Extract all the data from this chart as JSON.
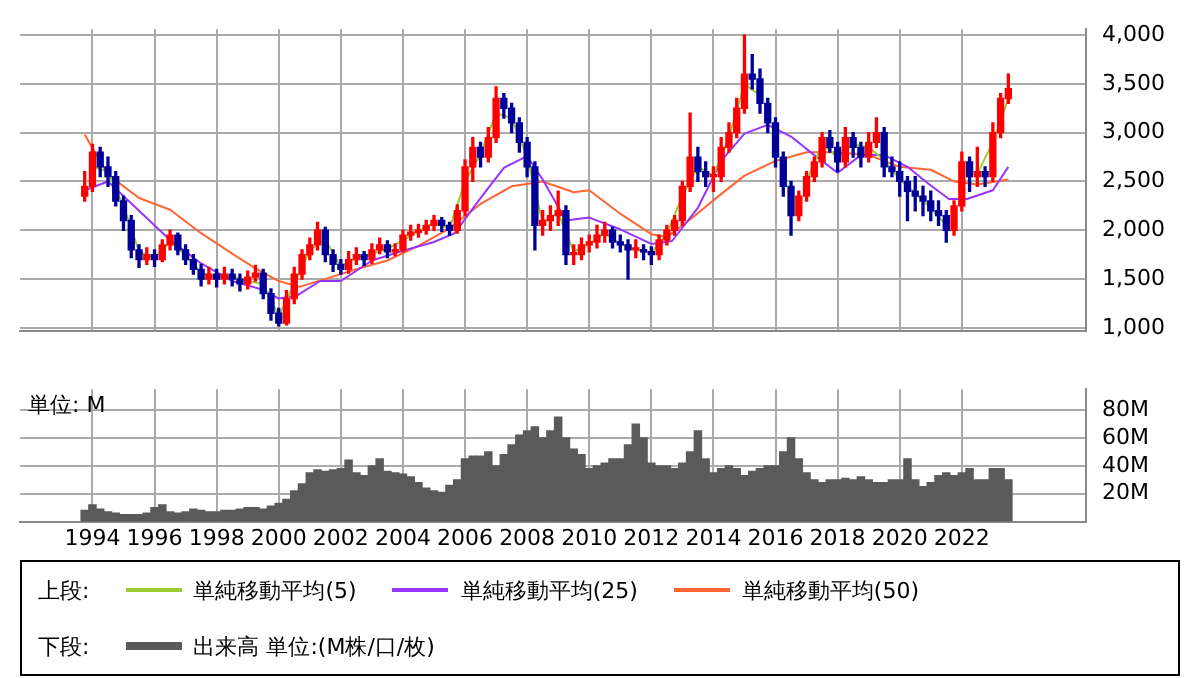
{
  "chart_data": [
    {
      "type": "candlestick",
      "tick_labels": "y",
      "grid": true,
      "legend": "bottom",
      "legend_title": "上段:",
      "xlim": [
        "1991-09",
        "2026-01"
      ],
      "xticks": [
        "1994",
        "1996",
        "1998",
        "2000",
        "2002",
        "2004",
        "2006",
        "2008",
        "2010",
        "2012",
        "2014",
        "2016",
        "2018",
        "2020",
        "2022"
      ],
      "ylim": [
        970,
        4060
      ],
      "yticks": [
        {
          "value": 1000,
          "label": "1,000"
        },
        {
          "value": 1500,
          "label": "1,500"
        },
        {
          "value": 2000,
          "label": "2,000"
        },
        {
          "value": 2500,
          "label": "2,500"
        },
        {
          "value": 3000,
          "label": "3,000"
        },
        {
          "value": 3500,
          "label": "3,500"
        },
        {
          "value": 4000,
          "label": "4,000"
        }
      ],
      "x": [
        "1993-10",
        "1994-01",
        "1994-04",
        "1994-07",
        "1994-10",
        "1995-01",
        "1995-04",
        "1995-07",
        "1995-10",
        "1996-01",
        "1996-04",
        "1996-07",
        "1996-10",
        "1997-01",
        "1997-04",
        "1997-07",
        "1997-10",
        "1998-01",
        "1998-04",
        "1998-07",
        "1998-10",
        "1999-01",
        "1999-04",
        "1999-07",
        "1999-10",
        "2000-01",
        "2000-04",
        "2000-07",
        "2000-10",
        "2001-01",
        "2001-04",
        "2001-07",
        "2001-10",
        "2002-01",
        "2002-04",
        "2002-07",
        "2002-10",
        "2003-01",
        "2003-04",
        "2003-07",
        "2003-10",
        "2004-01",
        "2004-04",
        "2004-07",
        "2004-10",
        "2005-01",
        "2005-04",
        "2005-07",
        "2005-10",
        "2006-01",
        "2006-04",
        "2006-07",
        "2006-10",
        "2007-01",
        "2007-04",
        "2007-07",
        "2007-10",
        "2008-01",
        "2008-04",
        "2008-07",
        "2008-10",
        "2009-01",
        "2009-04",
        "2009-07",
        "2009-10",
        "2010-01",
        "2010-04",
        "2010-07",
        "2010-10",
        "2011-01",
        "2011-04",
        "2011-07",
        "2011-10",
        "2012-01",
        "2012-04",
        "2012-07",
        "2012-10",
        "2013-01",
        "2013-04",
        "2013-07",
        "2013-10",
        "2014-01",
        "2014-04",
        "2014-07",
        "2014-10",
        "2015-01",
        "2015-04",
        "2015-07",
        "2015-10",
        "2016-01",
        "2016-04",
        "2016-07",
        "2016-10",
        "2017-01",
        "2017-04",
        "2017-07",
        "2017-10",
        "2018-01",
        "2018-04",
        "2018-07",
        "2018-10",
        "2019-01",
        "2019-04",
        "2019-07",
        "2019-10",
        "2020-01",
        "2020-04",
        "2020-07",
        "2020-10",
        "2021-01",
        "2021-04",
        "2021-07",
        "2021-10",
        "2022-01",
        "2022-04",
        "2022-07",
        "2022-10",
        "2023-01",
        "2023-04",
        "2023-07"
      ],
      "ohlc": [
        [
          2350,
          2600,
          2300,
          2450
        ],
        [
          2450,
          2880,
          2400,
          2800
        ],
        [
          2800,
          2850,
          2550,
          2650
        ],
        [
          2650,
          2750,
          2450,
          2550
        ],
        [
          2550,
          2600,
          2250,
          2300
        ],
        [
          2300,
          2350,
          2000,
          2100
        ],
        [
          2100,
          2150,
          1720,
          1800
        ],
        [
          1800,
          1850,
          1620,
          1700
        ],
        [
          1700,
          1820,
          1650,
          1750
        ],
        [
          1750,
          1800,
          1630,
          1700
        ],
        [
          1700,
          1900,
          1680,
          1850
        ],
        [
          1850,
          2000,
          1800,
          1950
        ],
        [
          1950,
          1970,
          1750,
          1800
        ],
        [
          1800,
          1850,
          1650,
          1700
        ],
        [
          1700,
          1750,
          1550,
          1600
        ],
        [
          1600,
          1650,
          1430,
          1500
        ],
        [
          1500,
          1620,
          1450,
          1550
        ],
        [
          1550,
          1600,
          1420,
          1500
        ],
        [
          1500,
          1620,
          1450,
          1550
        ],
        [
          1550,
          1600,
          1430,
          1500
        ],
        [
          1500,
          1550,
          1380,
          1450
        ],
        [
          1450,
          1580,
          1400,
          1520
        ],
        [
          1520,
          1640,
          1480,
          1560
        ],
        [
          1560,
          1600,
          1300,
          1350
        ],
        [
          1350,
          1400,
          1080,
          1150
        ],
        [
          1150,
          1200,
          1020,
          1050
        ],
        [
          1050,
          1380,
          1030,
          1300
        ],
        [
          1300,
          1620,
          1250,
          1550
        ],
        [
          1550,
          1800,
          1500,
          1750
        ],
        [
          1750,
          1920,
          1700,
          1850
        ],
        [
          1850,
          2080,
          1800,
          2000
        ],
        [
          2000,
          2030,
          1680,
          1750
        ],
        [
          1750,
          1800,
          1580,
          1650
        ],
        [
          1650,
          1700,
          1550,
          1600
        ],
        [
          1600,
          1780,
          1560,
          1700
        ],
        [
          1700,
          1820,
          1650,
          1750
        ],
        [
          1750,
          1780,
          1640,
          1700
        ],
        [
          1700,
          1860,
          1660,
          1800
        ],
        [
          1800,
          1920,
          1760,
          1850
        ],
        [
          1850,
          1890,
          1720,
          1780
        ],
        [
          1780,
          1860,
          1740,
          1800
        ],
        [
          1800,
          2000,
          1780,
          1950
        ],
        [
          1950,
          2050,
          1900,
          1980
        ],
        [
          1980,
          2060,
          1930,
          2000
        ],
        [
          2000,
          2100,
          1960,
          2050
        ],
        [
          2050,
          2150,
          2000,
          2100
        ],
        [
          2100,
          2130,
          1990,
          2050
        ],
        [
          2050,
          2080,
          1950,
          2000
        ],
        [
          2000,
          2260,
          1970,
          2200
        ],
        [
          2200,
          2720,
          2150,
          2650
        ],
        [
          2650,
          2950,
          2500,
          2850
        ],
        [
          2850,
          2900,
          2650,
          2750
        ],
        [
          2750,
          3050,
          2700,
          2950
        ],
        [
          2950,
          3470,
          2900,
          3350
        ],
        [
          3350,
          3400,
          3150,
          3250
        ],
        [
          3250,
          3300,
          3000,
          3100
        ],
        [
          3100,
          3150,
          2800,
          2900
        ],
        [
          2900,
          2950,
          2550,
          2650
        ],
        [
          2650,
          2700,
          1800,
          2050
        ],
        [
          2050,
          2200,
          1950,
          2100
        ],
        [
          2100,
          2250,
          2000,
          2150
        ],
        [
          2150,
          2400,
          2050,
          2200
        ],
        [
          2200,
          2250,
          1650,
          1750
        ],
        [
          1750,
          1850,
          1650,
          1750
        ],
        [
          1750,
          1920,
          1700,
          1850
        ],
        [
          1850,
          1950,
          1780,
          1880
        ],
        [
          1880,
          2050,
          1820,
          1950
        ],
        [
          1950,
          2080,
          1880,
          2000
        ],
        [
          2000,
          2030,
          1820,
          1880
        ],
        [
          1880,
          1950,
          1780,
          1850
        ],
        [
          1850,
          1900,
          1500,
          1800
        ],
        [
          1800,
          1900,
          1720,
          1800
        ],
        [
          1800,
          1850,
          1700,
          1780
        ],
        [
          1780,
          1830,
          1650,
          1750
        ],
        [
          1750,
          1950,
          1700,
          1900
        ],
        [
          1900,
          2050,
          1850,
          2000
        ],
        [
          2000,
          2150,
          1950,
          2100
        ],
        [
          2100,
          2500,
          2050,
          2450
        ],
        [
          2450,
          3200,
          2400,
          2750
        ],
        [
          2750,
          2850,
          2500,
          2600
        ],
        [
          2600,
          2700,
          2450,
          2550
        ],
        [
          2550,
          2650,
          2400,
          2550
        ],
        [
          2550,
          2950,
          2500,
          2850
        ],
        [
          2850,
          3100,
          2800,
          3000
        ],
        [
          3000,
          3350,
          2950,
          3250
        ],
        [
          3250,
          4000,
          3200,
          3600
        ],
        [
          3600,
          3800,
          3450,
          3550
        ],
        [
          3550,
          3650,
          3200,
          3300
        ],
        [
          3300,
          3350,
          3000,
          3100
        ],
        [
          3100,
          3150,
          2650,
          2750
        ],
        [
          2750,
          2800,
          2350,
          2450
        ],
        [
          2450,
          2500,
          1950,
          2150
        ],
        [
          2150,
          2400,
          2100,
          2350
        ],
        [
          2350,
          2600,
          2300,
          2550
        ],
        [
          2550,
          2750,
          2500,
          2700
        ],
        [
          2700,
          3000,
          2650,
          2950
        ],
        [
          2950,
          3020,
          2800,
          2850
        ],
        [
          2850,
          2900,
          2600,
          2700
        ],
        [
          2700,
          3050,
          2650,
          2950
        ],
        [
          2950,
          3000,
          2750,
          2850
        ],
        [
          2850,
          2900,
          2650,
          2750
        ],
        [
          2750,
          3000,
          2700,
          2900
        ],
        [
          2900,
          3150,
          2850,
          3000
        ],
        [
          3000,
          3050,
          2550,
          2650
        ],
        [
          2650,
          2750,
          2550,
          2600
        ],
        [
          2600,
          2700,
          2350,
          2500
        ],
        [
          2500,
          2550,
          2100,
          2400
        ],
        [
          2400,
          2550,
          2200,
          2350
        ],
        [
          2350,
          2450,
          2150,
          2300
        ],
        [
          2300,
          2400,
          2100,
          2200
        ],
        [
          2200,
          2300,
          2050,
          2150
        ],
        [
          2150,
          2200,
          1880,
          2000
        ],
        [
          2000,
          2300,
          1950,
          2250
        ],
        [
          2250,
          2800,
          2200,
          2700
        ],
        [
          2700,
          2750,
          2400,
          2550
        ],
        [
          2550,
          2850,
          2450,
          2600
        ],
        [
          2600,
          2650,
          2450,
          2550
        ],
        [
          2550,
          3100,
          2500,
          3000
        ],
        [
          3000,
          3400,
          2950,
          3350
        ],
        [
          3350,
          3600,
          3300,
          3450
        ]
      ],
      "series": [
        {
          "type": "line",
          "name": "単純移動平均(5)",
          "color": "#99cc33",
          "x": [
            "1994-01",
            "1994-07",
            "1995-01",
            "1995-07",
            "1996-01",
            "1996-07",
            "1997-01",
            "1997-07",
            "1998-01",
            "1998-07",
            "1999-01",
            "1999-07",
            "2000-01",
            "2000-07",
            "2001-01",
            "2001-07",
            "2002-01",
            "2002-07",
            "2003-01",
            "2003-07",
            "2004-01",
            "2004-07",
            "2005-01",
            "2005-07",
            "2006-01",
            "2006-07",
            "2007-01",
            "2007-07",
            "2008-01",
            "2008-07",
            "2009-01",
            "2009-07",
            "2010-01",
            "2010-07",
            "2011-01",
            "2011-07",
            "2012-01",
            "2012-07",
            "2013-01",
            "2013-07",
            "2014-01",
            "2014-07",
            "2015-01",
            "2015-07",
            "2016-01",
            "2016-07",
            "2017-01",
            "2017-07",
            "2018-01",
            "2018-07",
            "2019-01",
            "2019-07",
            "2020-01",
            "2020-07",
            "2021-01",
            "2021-07",
            "2022-01",
            "2022-07",
            "2023-01",
            "2023-07"
          ],
          "values": [
            2650,
            2600,
            2250,
            1780,
            1720,
            1880,
            1750,
            1560,
            1520,
            1530,
            1480,
            1450,
            1120,
            1450,
            1800,
            1900,
            1630,
            1720,
            1760,
            1810,
            1900,
            1990,
            2080,
            2020,
            2500,
            2780,
            3200,
            3150,
            2750,
            2080,
            2180,
            1780,
            1860,
            1970,
            1860,
            1800,
            1770,
            1960,
            2350,
            2650,
            2560,
            2950,
            3500,
            3380,
            null,
            null,
            2500,
            2880,
            2750,
            2880,
            2850,
            2720,
            2520,
            2380,
            2230,
            2050,
            null,
            2580,
            2900,
            3350
          ]
        },
        {
          "type": "line",
          "name": "単純移動平均(25)",
          "color": "#9933ff",
          "x": [
            "1993-10",
            "1994-07",
            "1995-07",
            "1996-07",
            "1997-07",
            "1998-07",
            "1999-07",
            "2000-01",
            "2000-08",
            "2001-05",
            "2002-01",
            "2003-01",
            "2004-01",
            "2005-01",
            "2005-09",
            "2006-07",
            "2007-04",
            "2008-01",
            "2008-07",
            "2009-04",
            "2010-01",
            "2011-01",
            "2012-01",
            "2012-09",
            "2013-07",
            "2014-04",
            "2015-01",
            "2015-10",
            "2016-07",
            "2017-04",
            "2018-01",
            "2018-10",
            "2019-07",
            "2020-04",
            "2020-11",
            "2021-08",
            "2022-03",
            "2023-01",
            "2023-07"
          ],
          "values": [
            2410,
            2500,
            2200,
            1900,
            1660,
            1480,
            1390,
            1300,
            1330,
            1480,
            1480,
            1690,
            1790,
            1880,
            1970,
            2330,
            2640,
            2760,
            2520,
            2100,
            2130,
            2010,
            1860,
            1890,
            2230,
            2710,
            2990,
            3080,
            2960,
            2770,
            2590,
            2770,
            2770,
            2650,
            2500,
            2320,
            2320,
            2410,
            2650
          ]
        },
        {
          "type": "line",
          "name": "単純移動平均(50)",
          "color": "#ff6633",
          "x": [
            "1993-10",
            "1994-07",
            "1995-07",
            "1996-07",
            "1997-07",
            "1998-07",
            "1999-04",
            "2000-01",
            "2000-09",
            "2001-08",
            "2002-07",
            "2003-07",
            "2004-07",
            "2005-07",
            "2006-07",
            "2007-07",
            "2008-07",
            "2009-07",
            "2010-01",
            "2011-01",
            "2012-01",
            "2012-07",
            "2013-04",
            "2014-03",
            "2015-01",
            "2016-01",
            "2017-01",
            "2018-01",
            "2019-01",
            "2020-01",
            "2021-01",
            "2021-10",
            "2022-07",
            "2023-07"
          ],
          "values": [
            2980,
            2570,
            2330,
            2210,
            1970,
            1760,
            1610,
            1480,
            1420,
            1510,
            1600,
            1690,
            1840,
            2020,
            2270,
            2450,
            2500,
            2390,
            2410,
            2170,
            1960,
            1930,
            2110,
            2350,
            2560,
            2710,
            2800,
            2800,
            2770,
            2650,
            2620,
            2500,
            2470,
            2520
          ]
        }
      ]
    },
    {
      "type": "bar",
      "grid": true,
      "legend": "bottom",
      "legend_title": "下段:",
      "annotations": [
        "単位: M"
      ],
      "xlim": [
        "1991-09",
        "2026-01"
      ],
      "xticks": [
        "1994",
        "1996",
        "1998",
        "2000",
        "2002",
        "2004",
        "2006",
        "2008",
        "2010",
        "2012",
        "2014",
        "2016",
        "2018",
        "2020",
        "2022"
      ],
      "ylim": [
        0,
        95
      ],
      "yticks": [
        {
          "value": 20,
          "label": "20M"
        },
        {
          "value": 40,
          "label": "40M"
        },
        {
          "value": 60,
          "label": "60M"
        },
        {
          "value": 80,
          "label": "80M"
        }
      ],
      "x": [
        "1993-10",
        "1994-01",
        "1994-04",
        "1994-07",
        "1994-10",
        "1995-01",
        "1995-04",
        "1995-07",
        "1995-10",
        "1996-01",
        "1996-04",
        "1996-07",
        "1996-10",
        "1997-01",
        "1997-04",
        "1997-07",
        "1997-10",
        "1998-01",
        "1998-04",
        "1998-07",
        "1998-10",
        "1999-01",
        "1999-04",
        "1999-07",
        "1999-10",
        "2000-01",
        "2000-04",
        "2000-07",
        "2000-10",
        "2001-01",
        "2001-04",
        "2001-07",
        "2001-10",
        "2002-01",
        "2002-04",
        "2002-07",
        "2002-10",
        "2003-01",
        "2003-04",
        "2003-07",
        "2003-10",
        "2004-01",
        "2004-04",
        "2004-07",
        "2004-10",
        "2005-01",
        "2005-04",
        "2005-07",
        "2005-10",
        "2006-01",
        "2006-04",
        "2006-07",
        "2006-10",
        "2007-01",
        "2007-04",
        "2007-07",
        "2007-10",
        "2008-01",
        "2008-04",
        "2008-07",
        "2008-10",
        "2009-01",
        "2009-04",
        "2009-07",
        "2009-10",
        "2010-01",
        "2010-04",
        "2010-07",
        "2010-10",
        "2011-01",
        "2011-04",
        "2011-07",
        "2011-10",
        "2012-01",
        "2012-04",
        "2012-07",
        "2012-10",
        "2013-01",
        "2013-04",
        "2013-07",
        "2013-10",
        "2014-01",
        "2014-04",
        "2014-07",
        "2014-10",
        "2015-01",
        "2015-04",
        "2015-07",
        "2015-10",
        "2016-01",
        "2016-04",
        "2016-07",
        "2016-10",
        "2017-01",
        "2017-04",
        "2017-07",
        "2017-10",
        "2018-01",
        "2018-04",
        "2018-07",
        "2018-10",
        "2019-01",
        "2019-04",
        "2019-07",
        "2019-10",
        "2020-01",
        "2020-04",
        "2020-07",
        "2020-10",
        "2021-01",
        "2021-04",
        "2021-07",
        "2021-10",
        "2022-01",
        "2022-04",
        "2022-07",
        "2022-10",
        "2023-01",
        "2023-04",
        "2023-07"
      ],
      "series": [
        {
          "name": "出来高 単位:(M株/口/枚)",
          "color": "#5a5a5a",
          "values": [
            8,
            12,
            9,
            7,
            6,
            5,
            5,
            5,
            6,
            10,
            12,
            7,
            6,
            7,
            9,
            8,
            7,
            7,
            8,
            8,
            9,
            10,
            10,
            9,
            11,
            13,
            16,
            22,
            27,
            35,
            37,
            36,
            37,
            38,
            44,
            35,
            33,
            40,
            45,
            36,
            35,
            34,
            32,
            28,
            24,
            22,
            21,
            26,
            30,
            45,
            47,
            47,
            50,
            40,
            48,
            55,
            62,
            65,
            68,
            60,
            65,
            75,
            60,
            52,
            48,
            38,
            40,
            42,
            45,
            45,
            55,
            70,
            60,
            42,
            40,
            40,
            38,
            42,
            50,
            65,
            45,
            35,
            38,
            40,
            38,
            33,
            36,
            38,
            40,
            40,
            50,
            60,
            45,
            35,
            30,
            28,
            30,
            30,
            31,
            30,
            32,
            30,
            28,
            28,
            30,
            30,
            45,
            30,
            25,
            28,
            33,
            35,
            33,
            35,
            38,
            30,
            30,
            38,
            38,
            30
          ]
        }
      ]
    }
  ]
}
